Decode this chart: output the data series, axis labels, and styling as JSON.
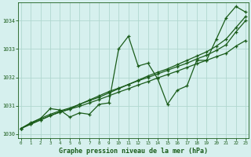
{
  "title": "Graphe pression niveau de la mer (hPa)",
  "bg_color": "#d6f0ee",
  "grid_color": "#b0d8d0",
  "line_color": "#1a5c1a",
  "text_color": "#1a5c1a",
  "x_hours": [
    0,
    1,
    2,
    3,
    4,
    5,
    6,
    7,
    8,
    9,
    10,
    11,
    12,
    13,
    14,
    15,
    16,
    17,
    18,
    19,
    20,
    21,
    22,
    23
  ],
  "series_volatile": [
    1030.2,
    1030.4,
    1030.55,
    1030.9,
    1030.85,
    1030.6,
    1030.75,
    1030.7,
    1031.05,
    1031.1,
    1033.0,
    1033.45,
    1032.4,
    1032.5,
    1031.95,
    1031.05,
    1031.55,
    1031.7,
    1032.6,
    1032.6,
    1033.35,
    1034.1,
    1034.5,
    1034.3
  ],
  "series_linear1": [
    1030.2,
    1030.35,
    1030.5,
    1030.65,
    1030.78,
    1030.88,
    1030.98,
    1031.1,
    1031.22,
    1031.35,
    1031.48,
    1031.6,
    1031.73,
    1031.85,
    1031.98,
    1032.1,
    1032.22,
    1032.35,
    1032.48,
    1032.6,
    1032.73,
    1032.85,
    1033.1,
    1033.3
  ],
  "series_linear2": [
    1030.2,
    1030.35,
    1030.5,
    1030.65,
    1030.78,
    1030.88,
    1031.05,
    1031.2,
    1031.35,
    1031.5,
    1031.62,
    1031.75,
    1031.88,
    1032.0,
    1032.12,
    1032.25,
    1032.38,
    1032.5,
    1032.65,
    1032.78,
    1032.95,
    1033.15,
    1033.6,
    1034.0
  ],
  "series_linear3": [
    1030.2,
    1030.38,
    1030.55,
    1030.7,
    1030.82,
    1030.92,
    1031.05,
    1031.18,
    1031.3,
    1031.45,
    1031.6,
    1031.75,
    1031.9,
    1032.05,
    1032.18,
    1032.3,
    1032.45,
    1032.6,
    1032.75,
    1032.9,
    1033.1,
    1033.35,
    1033.75,
    1034.15
  ],
  "ylim_min": 1029.85,
  "ylim_max": 1034.65,
  "yticks": [
    1030,
    1031,
    1032,
    1033,
    1034
  ],
  "xticks": [
    0,
    1,
    2,
    3,
    4,
    5,
    6,
    7,
    8,
    9,
    10,
    11,
    12,
    13,
    14,
    15,
    16,
    17,
    18,
    19,
    20,
    21,
    22,
    23
  ]
}
